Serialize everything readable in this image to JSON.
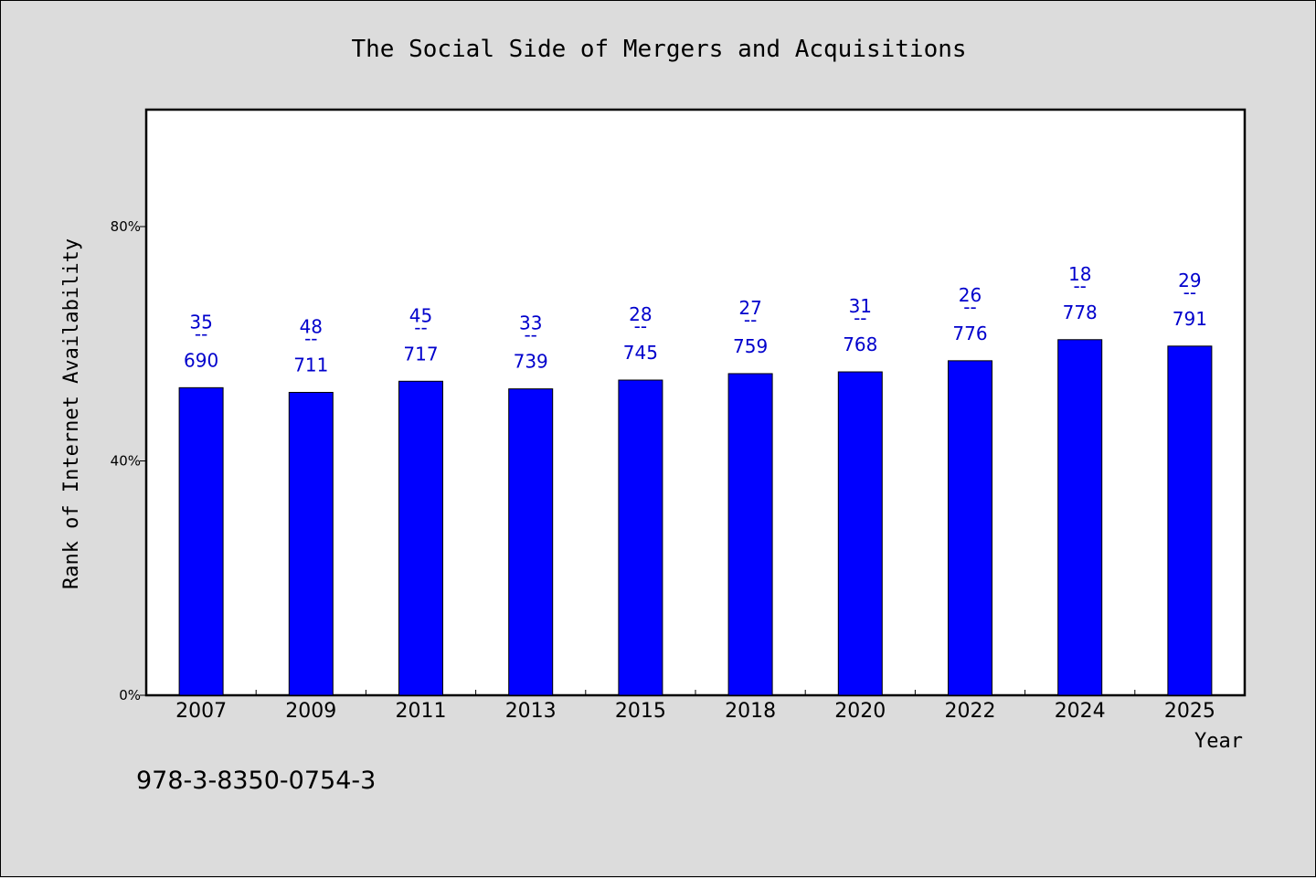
{
  "chart_data": {
    "type": "bar",
    "title": "The Social Side of Mergers and Acquisitions",
    "xlabel": "Year",
    "ylabel": "Rank of Internet Availability",
    "categories": [
      "2007",
      "2009",
      "2011",
      "2013",
      "2015",
      "2018",
      "2020",
      "2022",
      "2024",
      "2025"
    ],
    "values": [
      52.5,
      51.7,
      53.6,
      52.3,
      53.8,
      54.9,
      55.2,
      57.1,
      60.7,
      59.6
    ],
    "data_labels": [
      {
        "top": "35",
        "mid": "--",
        "bottom": "690"
      },
      {
        "top": "48",
        "mid": "--",
        "bottom": "711"
      },
      {
        "top": "45",
        "mid": "--",
        "bottom": "717"
      },
      {
        "top": "33",
        "mid": "--",
        "bottom": "739"
      },
      {
        "top": "28",
        "mid": "--",
        "bottom": "745"
      },
      {
        "top": "27",
        "mid": "--",
        "bottom": "759"
      },
      {
        "top": "31",
        "mid": "--",
        "bottom": "768"
      },
      {
        "top": "26",
        "mid": "--",
        "bottom": "776"
      },
      {
        "top": "18",
        "mid": "--",
        "bottom": "778"
      },
      {
        "top": "29",
        "mid": "--",
        "bottom": "791"
      }
    ],
    "ylim": [
      0,
      100
    ],
    "yticks": [
      0,
      40,
      80
    ],
    "ytick_labels": [
      "0%",
      "40%",
      "80%"
    ],
    "grid": false,
    "bar_color": "#0000ff",
    "label_color": "#0000cc"
  },
  "footnote": "978-3-8350-0754-3"
}
